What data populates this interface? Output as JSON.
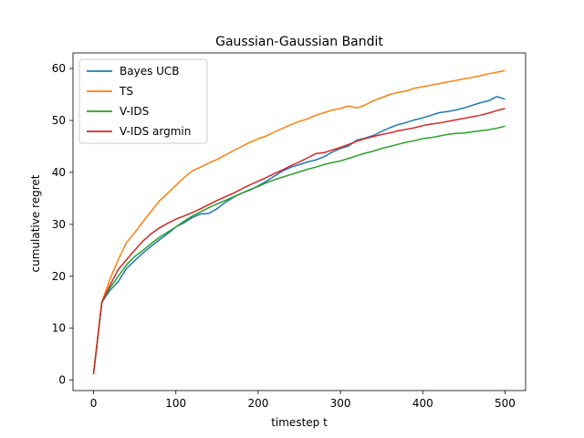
{
  "chart_data": {
    "type": "line",
    "title": "Gaussian-Gaussian Bandit",
    "xlabel": "timestep t",
    "ylabel": "cumulative regret",
    "xlim": [
      -25,
      525
    ],
    "ylim": [
      -2,
      63
    ],
    "xticks": [
      0,
      100,
      200,
      300,
      400,
      500
    ],
    "yticks": [
      0,
      10,
      20,
      30,
      40,
      50,
      60
    ],
    "grid": false,
    "legend_position": "top-left",
    "x": [
      0,
      10,
      20,
      30,
      40,
      50,
      60,
      70,
      80,
      90,
      100,
      110,
      120,
      130,
      140,
      150,
      160,
      170,
      180,
      190,
      200,
      210,
      220,
      230,
      240,
      250,
      260,
      270,
      280,
      290,
      300,
      310,
      320,
      330,
      340,
      350,
      360,
      370,
      380,
      390,
      400,
      410,
      420,
      430,
      440,
      450,
      460,
      470,
      480,
      490,
      500
    ],
    "series": [
      {
        "name": "Bayes UCB",
        "color": "#1f77b4",
        "values": [
          1.2,
          15.0,
          17.3,
          19.0,
          21.5,
          23.0,
          24.5,
          25.8,
          27.0,
          28.2,
          29.5,
          30.3,
          31.3,
          32.0,
          32.1,
          33.0,
          34.2,
          35.2,
          36.0,
          36.6,
          37.4,
          38.3,
          39.3,
          40.3,
          41.0,
          41.5,
          42.0,
          42.4,
          43.0,
          43.9,
          44.6,
          45.1,
          46.2,
          46.6,
          47.1,
          47.9,
          48.6,
          49.2,
          49.6,
          50.1,
          50.5,
          51.0,
          51.5,
          51.7,
          52.0,
          52.4,
          52.9,
          53.4,
          53.8,
          54.6,
          54.1
        ]
      },
      {
        "name": "TS",
        "color": "#ff7f0e",
        "values": [
          1.2,
          15.0,
          19.5,
          23.2,
          26.5,
          28.4,
          30.5,
          32.5,
          34.5,
          36.0,
          37.5,
          39.0,
          40.3,
          41.0,
          41.8,
          42.5,
          43.3,
          44.2,
          45.0,
          45.8,
          46.5,
          47.0,
          47.8,
          48.5,
          49.2,
          49.8,
          50.3,
          51.0,
          51.5,
          52.0,
          52.3,
          52.8,
          52.4,
          53.0,
          53.8,
          54.4,
          55.0,
          55.4,
          55.7,
          56.2,
          56.5,
          56.8,
          57.1,
          57.4,
          57.7,
          58.0,
          58.3,
          58.6,
          59.0,
          59.3,
          59.6
        ]
      },
      {
        "name": "V-IDS",
        "color": "#2ca02c",
        "values": [
          1.2,
          15.0,
          17.8,
          20.0,
          22.2,
          23.8,
          25.0,
          26.3,
          27.5,
          28.5,
          29.5,
          30.6,
          31.6,
          32.4,
          33.2,
          33.9,
          34.6,
          35.3,
          36.0,
          36.7,
          37.3,
          38.0,
          38.6,
          39.1,
          39.6,
          40.1,
          40.6,
          41.0,
          41.5,
          41.9,
          42.2,
          42.7,
          43.2,
          43.7,
          44.1,
          44.6,
          45.0,
          45.4,
          45.8,
          46.1,
          46.5,
          46.7,
          47.0,
          47.3,
          47.5,
          47.6,
          47.8,
          48.0,
          48.2,
          48.5,
          48.9
        ]
      },
      {
        "name": "V-IDS argmin",
        "color": "#d62728",
        "values": [
          1.2,
          15.0,
          18.3,
          21.3,
          23.2,
          25.0,
          26.8,
          28.2,
          29.3,
          30.2,
          31.0,
          31.6,
          32.3,
          33.0,
          33.8,
          34.6,
          35.3,
          36.0,
          36.8,
          37.6,
          38.3,
          39.0,
          39.8,
          40.5,
          41.3,
          42.0,
          42.8,
          43.6,
          43.8,
          44.3,
          44.8,
          45.4,
          46.0,
          46.5,
          46.9,
          47.3,
          47.6,
          48.0,
          48.3,
          48.6,
          49.0,
          49.3,
          49.5,
          49.8,
          50.1,
          50.4,
          50.7,
          51.0,
          51.4,
          51.9,
          52.3
        ]
      }
    ]
  }
}
